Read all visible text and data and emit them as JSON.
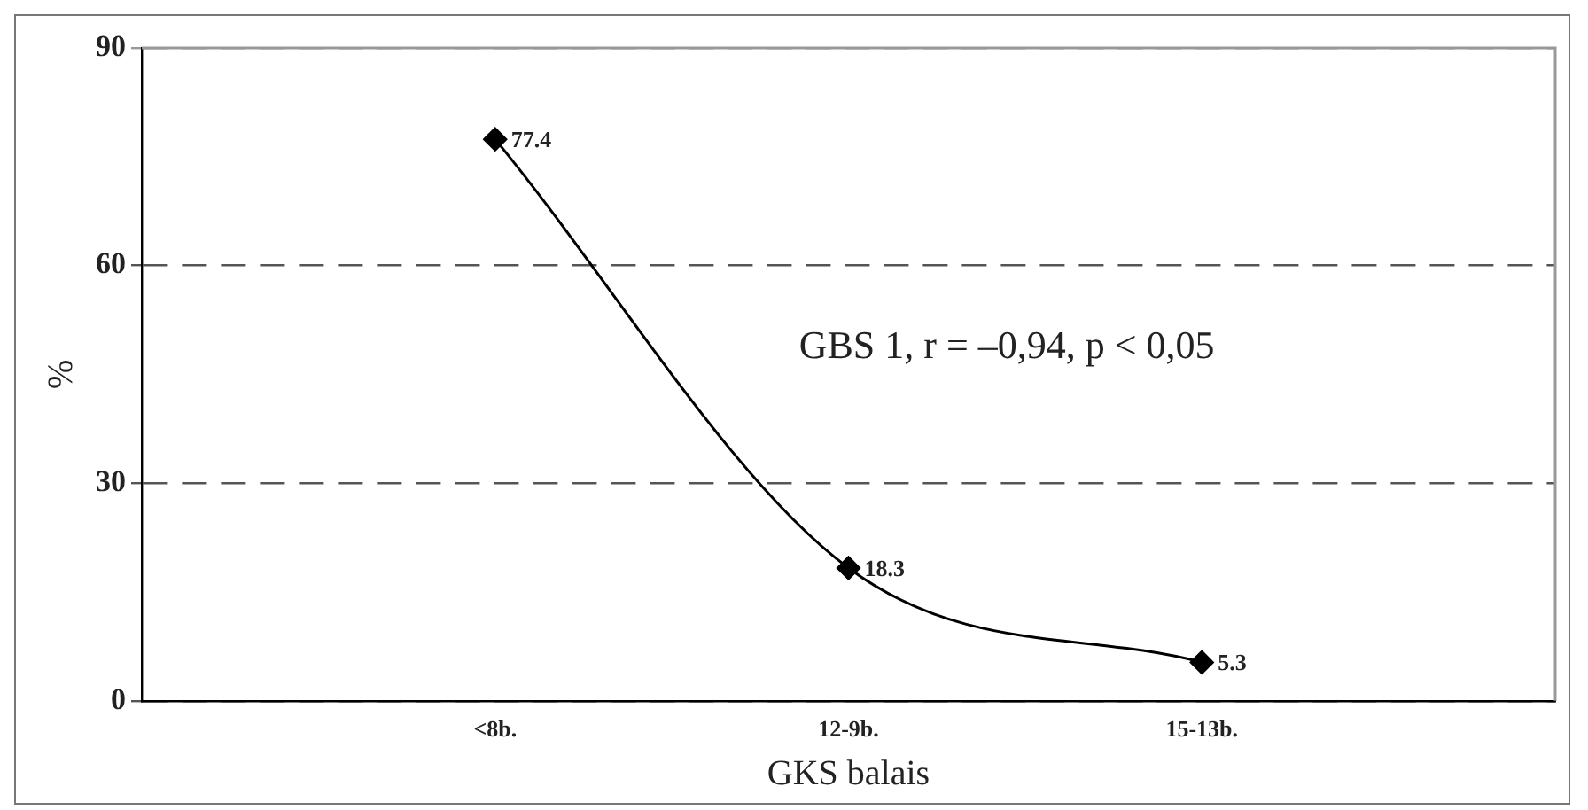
{
  "chart_data": {
    "type": "line",
    "xlabel": "GKS balais",
    "ylabel": "%",
    "categories": [
      null,
      "<8b.",
      "12-9b.",
      "15-13b.",
      null
    ],
    "series": [
      {
        "color": "#000000",
        "values": [
          null,
          77.4,
          18.3,
          5.3,
          null
        ]
      }
    ],
    "ylim": [
      0,
      90
    ],
    "yticks": [
      0,
      30,
      60,
      90
    ],
    "grid": "y",
    "marker": "diamond",
    "line_style": "solid",
    "data_labels": true,
    "annotations": [
      "GBS 1, r = –0,94, p < 0,05"
    ]
  }
}
